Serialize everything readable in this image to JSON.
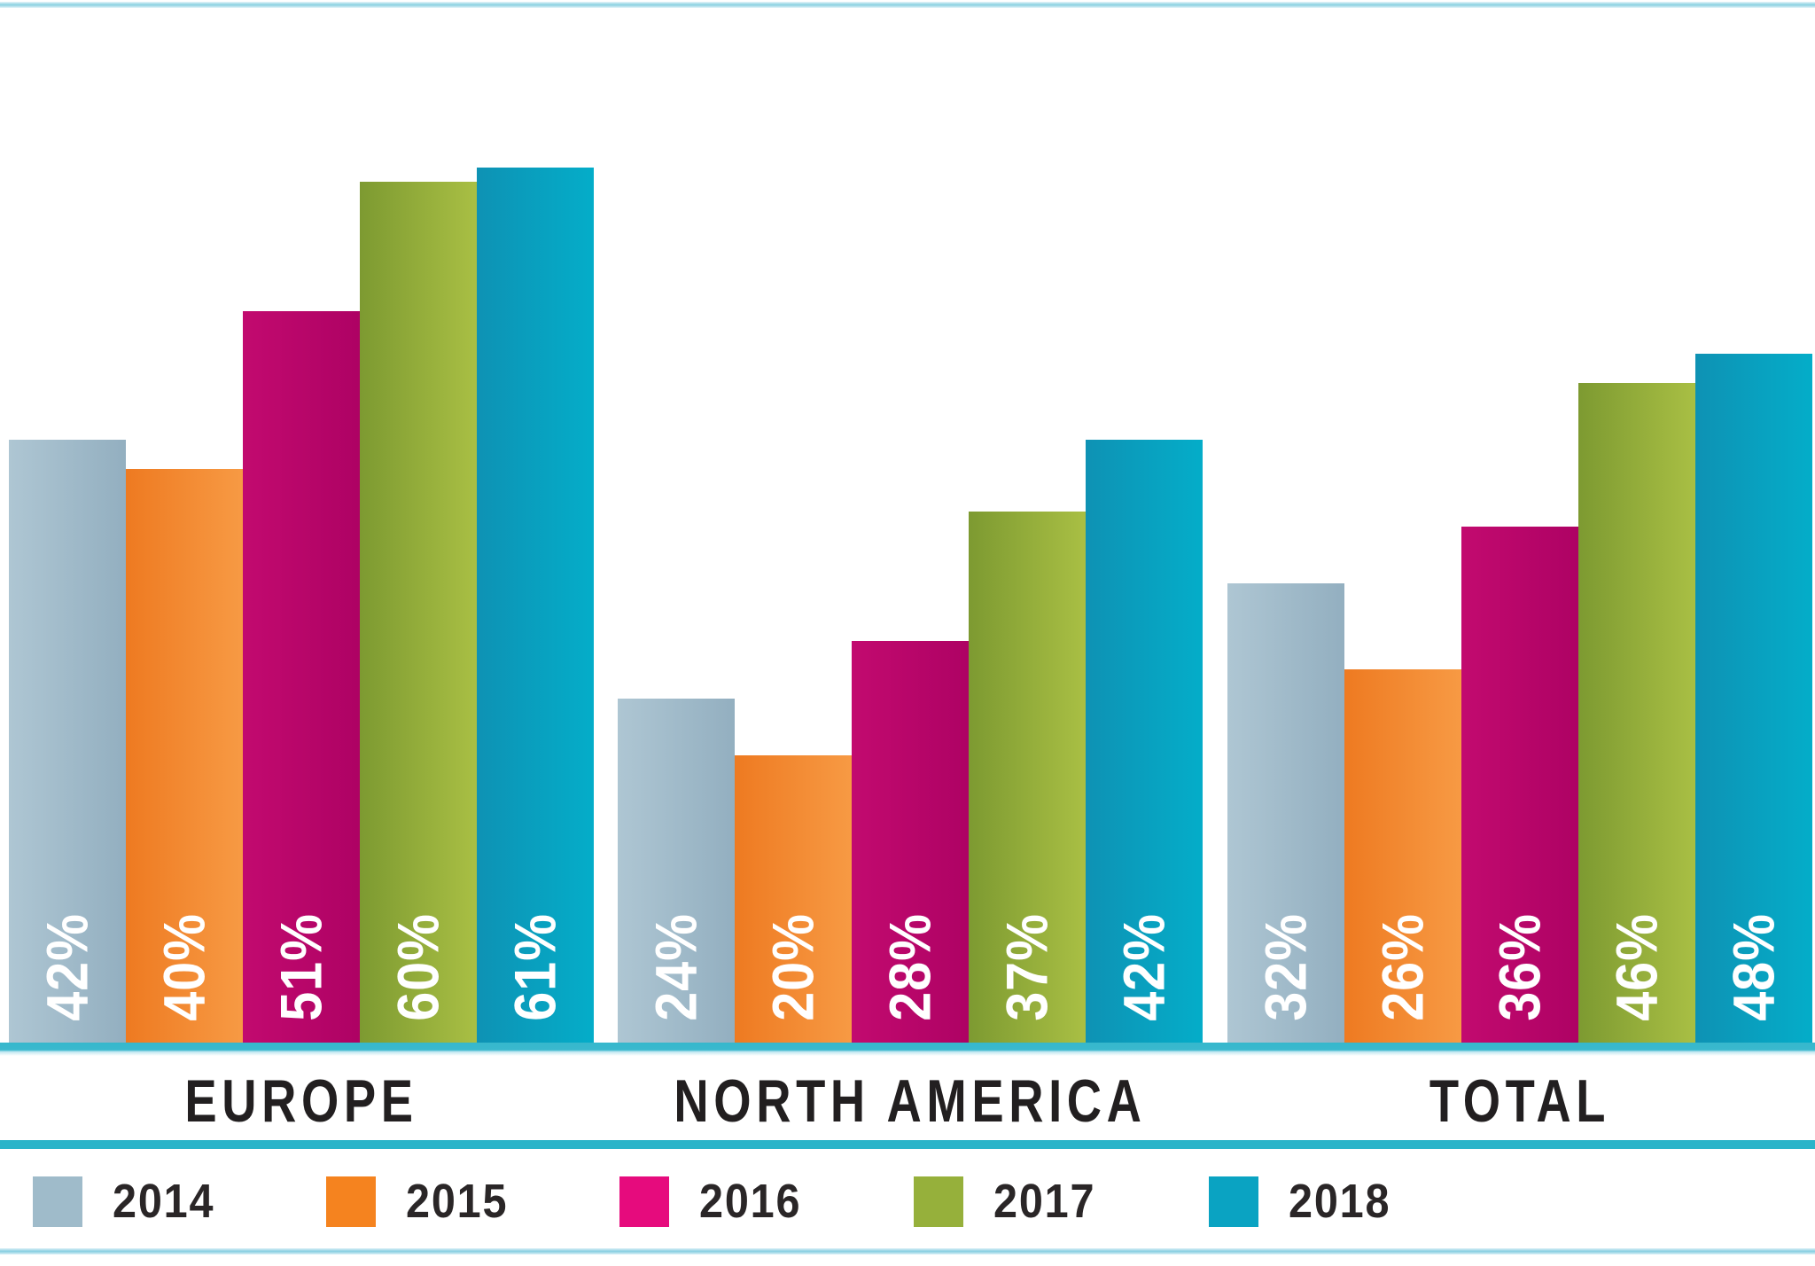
{
  "chart_data": {
    "type": "bar",
    "title": "",
    "categories": [
      "EUROPE",
      "NORTH AMERICA",
      "TOTAL"
    ],
    "series": [
      {
        "name": "2014",
        "values": [
          42,
          24,
          32
        ],
        "bar_color_left": "#aec6d3",
        "bar_color_right": "#93afc0",
        "legend_color": "#9fbbca"
      },
      {
        "name": "2015",
        "values": [
          40,
          20,
          26
        ],
        "bar_color_left": "#ee7a21",
        "bar_color_right": "#f79a44",
        "legend_color": "#f5831f"
      },
      {
        "name": "2016",
        "values": [
          51,
          28,
          36
        ],
        "bar_color_left": "#c20a6f",
        "bar_color_right": "#ae0264",
        "legend_color": "#e60b7d"
      },
      {
        "name": "2017",
        "values": [
          60,
          37,
          46
        ],
        "bar_color_left": "#7d9a31",
        "bar_color_right": "#a9bf44",
        "legend_color": "#96b03b"
      },
      {
        "name": "2018",
        "values": [
          61,
          42,
          48
        ],
        "bar_color_left": "#0e92b4",
        "bar_color_right": "#04adc9",
        "legend_color": "#0aa3c2"
      }
    ],
    "value_suffix": "%",
    "value_labels_position": "inside-bottom-rotated-90",
    "value_label_color": "#ffffff",
    "xlabel": "",
    "ylabel": "",
    "ylim": [
      0,
      63
    ],
    "grid": false,
    "legend_position": "bottom",
    "accent_rule_color": "#2ab4c9",
    "light_rule_color": "#8ed2e2",
    "category_label_color": "#221f20",
    "background": "#ffffff"
  }
}
